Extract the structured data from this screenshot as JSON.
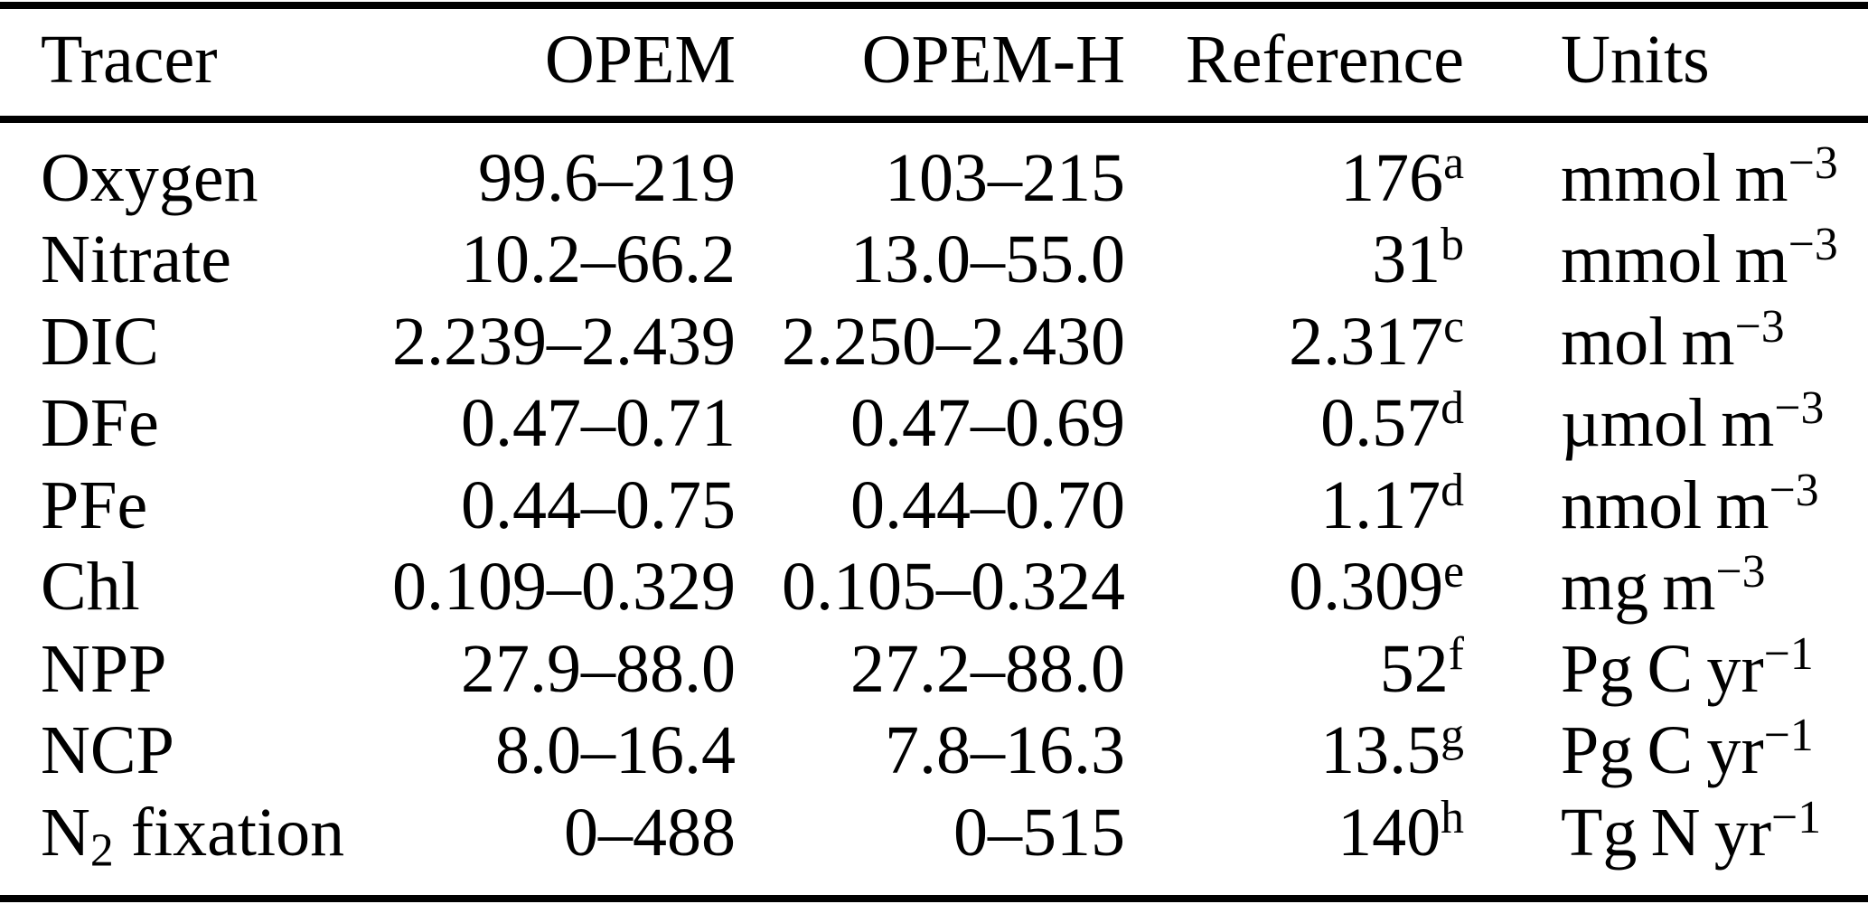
{
  "colors": {
    "background": "#ffffff",
    "text": "#000000",
    "rule": "#000000"
  },
  "table": {
    "header": {
      "tracer": "Tracer",
      "opem": "OPEM",
      "opem_h": "OPEM-H",
      "reference": "Reference",
      "units": "Units"
    },
    "rows": [
      {
        "tracer": "Oxygen",
        "tracer_sub": "",
        "tracer_rest": "",
        "opem": "99.6–219",
        "opem_h": "103–215",
        "ref": "176",
        "ref_note": "a",
        "unit": "mmol m",
        "unit_exp": "−3"
      },
      {
        "tracer": "Nitrate",
        "tracer_sub": "",
        "tracer_rest": "",
        "opem": "10.2–66.2",
        "opem_h": "13.0–55.0",
        "ref": "31",
        "ref_note": "b",
        "unit": "mmol m",
        "unit_exp": "−3"
      },
      {
        "tracer": "DIC",
        "tracer_sub": "",
        "tracer_rest": "",
        "opem": "2.239–2.439",
        "opem_h": "2.250–2.430",
        "ref": "2.317",
        "ref_note": "c",
        "unit": "mol m",
        "unit_exp": "−3"
      },
      {
        "tracer": "DFe",
        "tracer_sub": "",
        "tracer_rest": "",
        "opem": "0.47–0.71",
        "opem_h": "0.47–0.69",
        "ref": "0.57",
        "ref_note": "d",
        "unit": "µmol m",
        "unit_exp": "−3"
      },
      {
        "tracer": "PFe",
        "tracer_sub": "",
        "tracer_rest": "",
        "opem": "0.44–0.75",
        "opem_h": "0.44–0.70",
        "ref": "1.17",
        "ref_note": "d",
        "unit": "nmol m",
        "unit_exp": "−3"
      },
      {
        "tracer": "Chl",
        "tracer_sub": "",
        "tracer_rest": "",
        "opem": "0.109–0.329",
        "opem_h": "0.105–0.324",
        "ref": "0.309",
        "ref_note": "e",
        "unit": "mg m",
        "unit_exp": "−3"
      },
      {
        "tracer": "NPP",
        "tracer_sub": "",
        "tracer_rest": "",
        "opem": "27.9–88.0",
        "opem_h": "27.2–88.0",
        "ref": "52",
        "ref_note": "f",
        "unit": "Pg C yr",
        "unit_exp": "−1"
      },
      {
        "tracer": "NCP",
        "tracer_sub": "",
        "tracer_rest": "",
        "opem": "8.0–16.4",
        "opem_h": "7.8–16.3",
        "ref": "13.5",
        "ref_note": "g",
        "unit": "Pg C yr",
        "unit_exp": "−1"
      },
      {
        "tracer": "N",
        "tracer_sub": "2",
        "tracer_rest": " fixation",
        "opem": "0–488",
        "opem_h": "0–515",
        "ref": "140",
        "ref_note": "h",
        "unit": "Tg N yr",
        "unit_exp": "−1"
      }
    ]
  }
}
